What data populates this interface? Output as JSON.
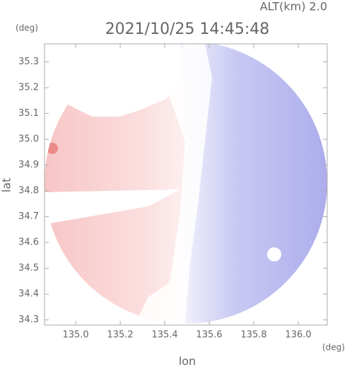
{
  "chart_data": {
    "type": "radar-field",
    "annotation": "ALT(km) 2.0",
    "title": "2021/10/25 14:45:48",
    "y_unit": "(deg)",
    "x_unit": "(deg)",
    "xlabel": "lon",
    "ylabel": "lat",
    "xlim": [
      134.86,
      136.13
    ],
    "ylim": [
      34.28,
      35.37
    ],
    "xticks": [
      {
        "value": 135,
        "label": "135.0"
      },
      135.2,
      135.4,
      135.6,
      135.8,
      {
        "value": 136,
        "label": "136.0"
      }
    ],
    "yticks": [
      34.3,
      34.4,
      34.5,
      34.6,
      34.7,
      34.8,
      34.9,
      {
        "value": 35,
        "label": "35.0"
      },
      35.1,
      35.2,
      35.3
    ]
  }
}
